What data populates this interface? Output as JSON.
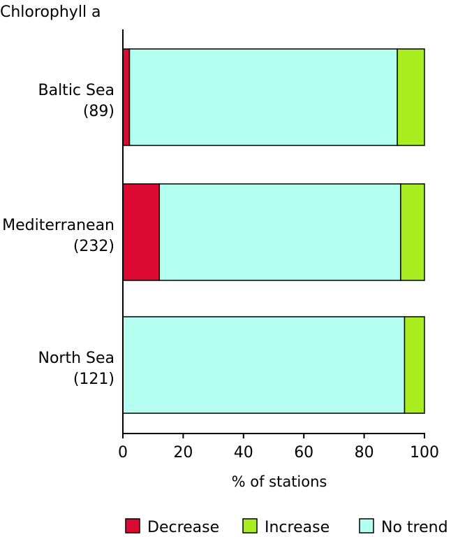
{
  "chart_data": {
    "type": "bar",
    "orientation": "horizontal",
    "stacked": true,
    "title": "Chlorophyll a",
    "xlabel": "% of stations",
    "ylabel": "",
    "xlim": [
      0,
      100
    ],
    "xticks": [
      "0",
      "20",
      "40",
      "60",
      "80",
      "100"
    ],
    "categories": [
      {
        "name": "Baltic Sea",
        "count": "(89)"
      },
      {
        "name": "Mediterranean",
        "count": "(232)"
      },
      {
        "name": "North Sea",
        "count": "(121)"
      }
    ],
    "series": [
      {
        "name": "Decrease",
        "color": "#dc0a33",
        "values": [
          2.2,
          12.1,
          0
        ]
      },
      {
        "name": "No trend",
        "color": "#b3fff0",
        "values": [
          88.8,
          80.0,
          93.4
        ]
      },
      {
        "name": "Increase",
        "color": "#a9ec1f",
        "values": [
          9.0,
          7.9,
          6.6
        ]
      }
    ],
    "legend": {
      "placement": "bottom",
      "order": [
        "Decrease",
        "Increase",
        "No trend"
      ]
    },
    "grid": false
  }
}
